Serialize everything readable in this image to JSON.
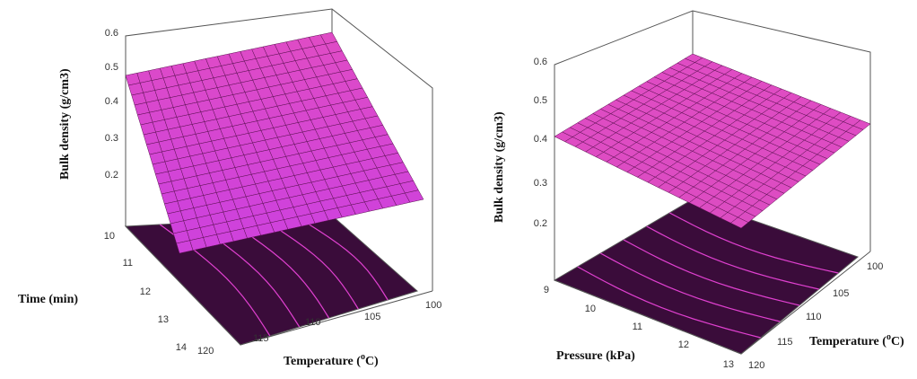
{
  "chart_data": [
    {
      "type": "surface",
      "zlabel": "Bulk density (g/cm3)",
      "zticks": [
        "0.2",
        "0.3",
        "0.4",
        "0.5",
        "0.6"
      ],
      "zlim": [
        0.1,
        0.6
      ],
      "ylabel": "Time (min)",
      "yticks": [
        "10",
        "11",
        "12",
        "13",
        "14"
      ],
      "xlabel_prefix": "Temperature (",
      "xlabel_sup": "o",
      "xlabel_suffix": "C)",
      "xticks": [
        "100",
        "105",
        "110",
        "115",
        "120"
      ],
      "surface_corners": {
        "temp100_time10": 0.59,
        "temp120_time10": 0.46,
        "temp120_time14": 0.0,
        "temp100_time14": 0.16
      },
      "surface_color": "#e04cc4",
      "floor_color": "#3a0c3a",
      "contour_color": "#e040d0"
    },
    {
      "type": "surface",
      "zlabel": "Bulk density (g/cm3)",
      "zticks": [
        "0.2",
        "0.3",
        "0.4",
        "0.5",
        "0.6"
      ],
      "zlim": [
        0.1,
        0.6
      ],
      "ylabel": "Pressure (kPa)",
      "yticks": [
        "9",
        "10",
        "11",
        "12",
        "13"
      ],
      "xlabel_prefix": "Temperature (",
      "xlabel_sup": "o",
      "xlabel_suffix": "C)",
      "xticks": [
        "100",
        "105",
        "110",
        "115",
        "120"
      ],
      "surface_corners": {
        "temp120_press9": 0.42,
        "temp100_press9": 0.55,
        "temp100_press13": 0.42,
        "temp120_press13": 0.2
      },
      "surface_color": "#e04cc4",
      "floor_color": "#3a0c3a",
      "contour_color": "#e040d0"
    }
  ]
}
